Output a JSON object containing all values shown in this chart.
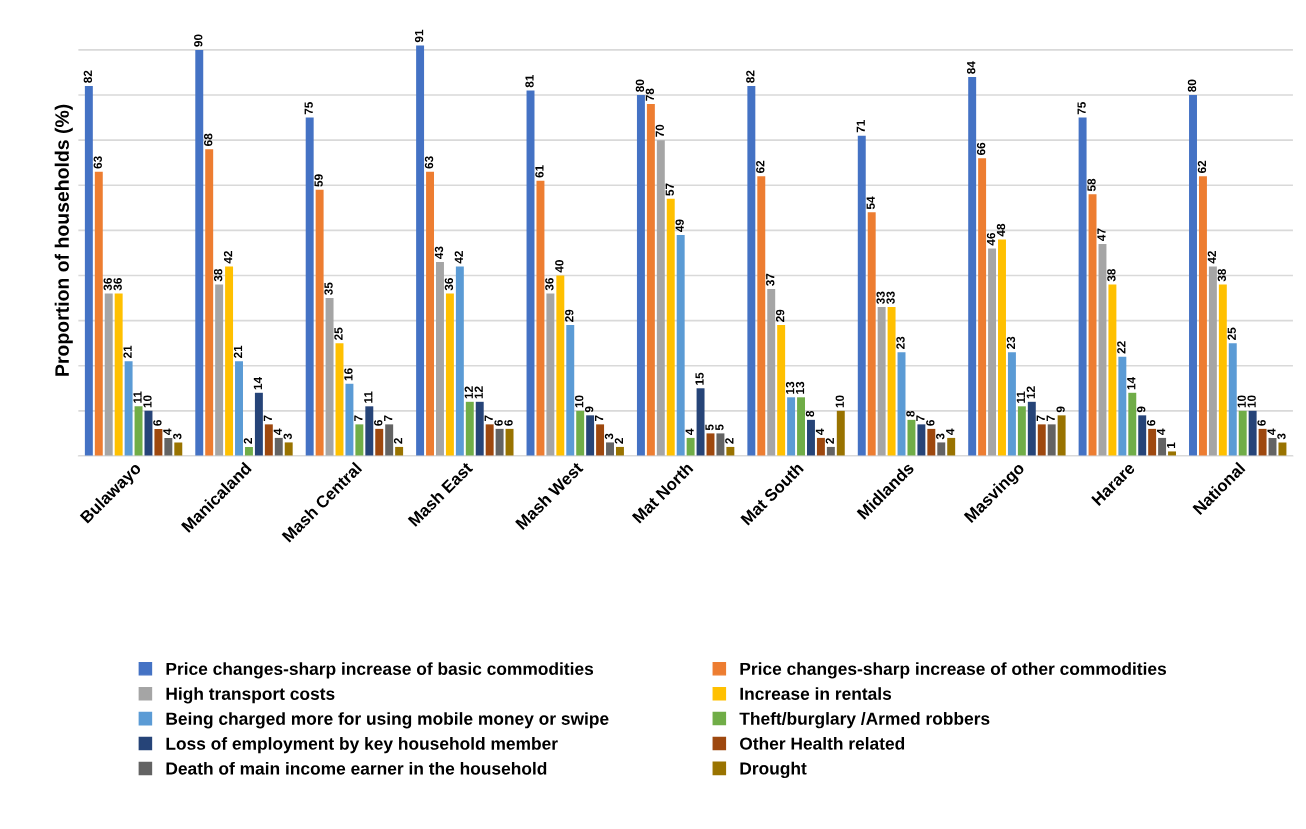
{
  "chart_data": {
    "type": "bar",
    "ylabel": "Proportion of households (%)",
    "categories": [
      "Bulawayo",
      "Manicaland",
      "Mash Central",
      "Mash East",
      "Mash West",
      "Mat North",
      "Mat South",
      "Midlands",
      "Masvingo",
      "Harare",
      "National"
    ],
    "series": [
      {
        "name": "Price changes-sharp increase of basic commodities",
        "color": "#4472c4",
        "values": [
          82,
          90,
          75,
          91,
          81,
          80,
          82,
          71,
          84,
          75,
          80
        ]
      },
      {
        "name": "Price changes-sharp increase of other commodities",
        "color": "#ed7d31",
        "values": [
          63,
          68,
          59,
          63,
          61,
          78,
          62,
          54,
          66,
          58,
          62
        ]
      },
      {
        "name": "High transport costs",
        "color": "#a5a5a5",
        "values": [
          36,
          38,
          35,
          43,
          36,
          70,
          37,
          33,
          46,
          47,
          42
        ]
      },
      {
        "name": "Increase in rentals",
        "color": "#ffc000",
        "values": [
          36,
          42,
          25,
          36,
          40,
          57,
          29,
          33,
          48,
          38,
          38
        ]
      },
      {
        "name": "Being charged more for using mobile money or swipe",
        "color": "#5b9bd5",
        "values": [
          21,
          21,
          16,
          42,
          29,
          49,
          13,
          23,
          23,
          22,
          25
        ]
      },
      {
        "name": "Theft/burglary /Armed robbers",
        "color": "#70ad47",
        "values": [
          11,
          2,
          7,
          12,
          10,
          4,
          13,
          8,
          11,
          14,
          10
        ]
      },
      {
        "name": "Loss of employment by key household member",
        "color": "#264478",
        "values": [
          10,
          14,
          11,
          12,
          9,
          15,
          8,
          7,
          12,
          9,
          10
        ]
      },
      {
        "name": "Other Health related",
        "color": "#9e480e",
        "values": [
          6,
          7,
          6,
          7,
          7,
          5,
          4,
          6,
          7,
          6,
          6
        ]
      },
      {
        "name": "Death of main income earner in the household",
        "color": "#636363",
        "values": [
          4,
          4,
          7,
          6,
          3,
          5,
          2,
          3,
          7,
          4,
          4
        ]
      },
      {
        "name": "Drought",
        "color": "#997300",
        "values": [
          3,
          3,
          2,
          6,
          2,
          2,
          10,
          4,
          9,
          1,
          3
        ]
      }
    ],
    "yticks": [
      {
        "value": 0,
        "label": null
      },
      {
        "value": 10,
        "label": null
      },
      {
        "value": 20,
        "label": null
      },
      {
        "value": 30,
        "label": null
      },
      {
        "value": 40,
        "label": null
      },
      {
        "value": 50,
        "label": null
      },
      {
        "value": 60,
        "label": null
      },
      {
        "value": 70,
        "label": null
      },
      {
        "value": 80,
        "label": null
      },
      {
        "value": 90,
        "label": null
      }
    ],
    "tick_labels": "x",
    "grid": "y",
    "legend": "bottom",
    "data_labels": true
  }
}
